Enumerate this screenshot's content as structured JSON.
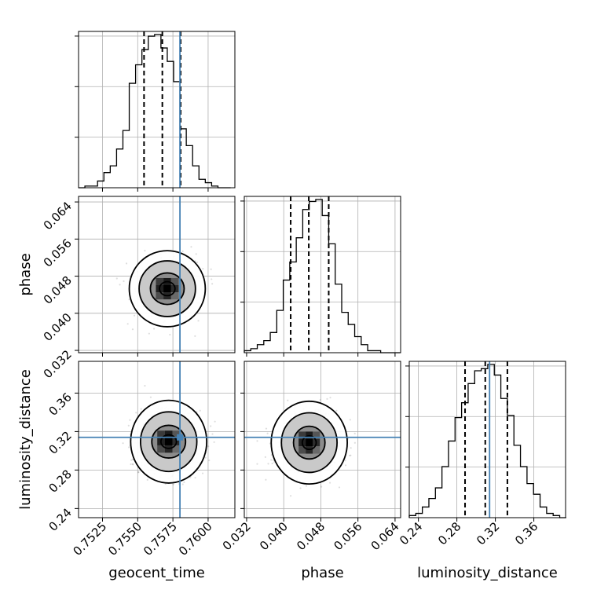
{
  "chart_data": {
    "type": "corner",
    "grid": true,
    "truth_color": "#4682b4",
    "parameters": [
      {
        "name": "geocent_time",
        "label": "geocent_time",
        "range": [
          0.7508,
          0.7619
        ],
        "ticks": [
          0.7525,
          0.755,
          0.7575,
          0.76
        ],
        "tick_labels": [
          "0.7525",
          "0.7550",
          "0.7575",
          "0.7600"
        ],
        "truth": 0.758,
        "quantiles": [
          0.75545,
          0.75675,
          0.75805
        ],
        "hist_edges": [
          0.7508,
          0.75125,
          0.7517,
          0.75215,
          0.7526,
          0.75305,
          0.7535,
          0.75395,
          0.7544,
          0.75485,
          0.7553,
          0.75575,
          0.7562,
          0.75665,
          0.7571,
          0.75755,
          0.758,
          0.75845,
          0.7589,
          0.75935,
          0.7598,
          0.76025,
          0.7607,
          0.76115,
          0.7616
        ],
        "hist_counts": [
          0,
          1,
          1,
          4,
          9,
          13,
          23,
          34,
          62,
          73,
          82,
          90,
          91,
          83,
          75,
          63,
          35,
          25,
          13,
          5,
          3,
          1,
          0,
          0
        ]
      },
      {
        "name": "phase",
        "label": "phase",
        "range": [
          0.0315,
          0.0652
        ],
        "ticks": [
          0.032,
          0.04,
          0.048,
          0.056,
          0.064
        ],
        "tick_labels": [
          "0.032",
          "0.040",
          "0.048",
          "0.056",
          "0.064"
        ],
        "truth": null,
        "quantiles": [
          0.0415,
          0.0454,
          0.0497
        ],
        "hist_edges": [
          0.0315,
          0.0329,
          0.0343,
          0.0357,
          0.0371,
          0.0385,
          0.0399,
          0.0413,
          0.0427,
          0.0441,
          0.0455,
          0.0469,
          0.0483,
          0.0497,
          0.0511,
          0.0525,
          0.0539,
          0.0553,
          0.0567,
          0.0581,
          0.0595,
          0.0609,
          0.0623,
          0.0637,
          0.0651
        ],
        "hist_counts": [
          1,
          2,
          4,
          6,
          10,
          21,
          36,
          45,
          57,
          71,
          75,
          76,
          68,
          54,
          34,
          20,
          14,
          8,
          4,
          1,
          1,
          0,
          0,
          0
        ]
      },
      {
        "name": "luminosity_distance",
        "label": "luminosity_distance",
        "range": [
          0.2305,
          0.393
        ],
        "ticks": [
          0.24,
          0.28,
          0.32,
          0.36
        ],
        "tick_labels": [
          "0.24",
          "0.28",
          "0.32",
          "0.36"
        ],
        "truth": 0.314,
        "quantiles": [
          0.2885,
          0.3095,
          0.3325
        ],
        "hist_edges": [
          0.2305,
          0.2373,
          0.2441,
          0.2509,
          0.2577,
          0.2645,
          0.2713,
          0.2781,
          0.2849,
          0.2917,
          0.2985,
          0.3053,
          0.3121,
          0.3189,
          0.3257,
          0.3325,
          0.3393,
          0.3461,
          0.3529,
          0.3597,
          0.3665,
          0.3733,
          0.3801,
          0.3869,
          0.3937
        ],
        "hist_counts": [
          1,
          2,
          5,
          9,
          14,
          24,
          36,
          47,
          54,
          63,
          69,
          70,
          72,
          67,
          56,
          48,
          34,
          24,
          16,
          11,
          5,
          2,
          1,
          0
        ]
      }
    ],
    "pairs": [
      {
        "x": "geocent_time",
        "y": "phase",
        "center": [
          0.7571,
          0.0453
        ],
        "contour_half_widths": [
          [
            0.00055,
            0.0015
          ],
          [
            0.0012,
            0.0034
          ],
          [
            0.002,
            0.006
          ],
          [
            0.0027,
            0.0082
          ]
        ]
      },
      {
        "x": "geocent_time",
        "y": "luminosity_distance",
        "center": [
          0.7572,
          0.3095
        ],
        "contour_half_widths": [
          [
            0.00055,
            0.007
          ],
          [
            0.0012,
            0.017
          ],
          [
            0.002,
            0.031
          ],
          [
            0.0027,
            0.043
          ]
        ]
      },
      {
        "x": "phase",
        "y": "luminosity_distance",
        "center": [
          0.0455,
          0.3085
        ],
        "contour_half_widths": [
          [
            0.0015,
            0.007
          ],
          [
            0.0034,
            0.017
          ],
          [
            0.006,
            0.031
          ],
          [
            0.0082,
            0.043
          ]
        ]
      }
    ]
  }
}
